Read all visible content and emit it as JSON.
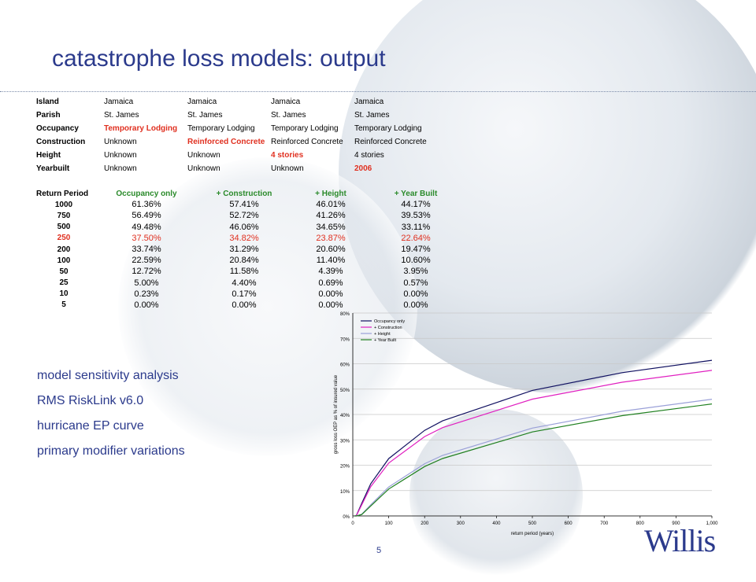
{
  "title": "catastrophe loss models: output",
  "attributes": [
    {
      "label": "Island",
      "values": [
        "Jamaica",
        "Jamaica",
        "Jamaica",
        "Jamaica"
      ],
      "highlight": -1
    },
    {
      "label": "Parish",
      "values": [
        "St. James",
        "St. James",
        "St. James",
        "St. James"
      ],
      "highlight": -1
    },
    {
      "label": "Occupancy",
      "values": [
        "Temporary Lodging",
        "Temporary Lodging",
        "Temporary Lodging",
        "Temporary Lodging"
      ],
      "highlight": 0
    },
    {
      "label": "Construction",
      "values": [
        "Unknown",
        "Reinforced Concrete",
        "Reinforced Concrete",
        "Reinforced Concrete"
      ],
      "highlight": 1
    },
    {
      "label": "Height",
      "values": [
        "Unknown",
        "Unknown",
        "4 stories",
        "4 stories"
      ],
      "highlight": 2
    },
    {
      "label": "Yearbuilt",
      "values": [
        "Unknown",
        "Unknown",
        "Unknown",
        "2006"
      ],
      "highlight": 3
    }
  ],
  "rp_table": {
    "headers": [
      "Return Period",
      "Occupancy only",
      "+ Construction",
      "+ Height",
      "+ Year Built"
    ],
    "rows": [
      {
        "rp": "1000",
        "vals": [
          "61.36%",
          "57.41%",
          "46.01%",
          "44.17%"
        ],
        "red": false
      },
      {
        "rp": "750",
        "vals": [
          "56.49%",
          "52.72%",
          "41.26%",
          "39.53%"
        ],
        "red": false
      },
      {
        "rp": "500",
        "vals": [
          "49.48%",
          "46.06%",
          "34.65%",
          "33.11%"
        ],
        "red": false
      },
      {
        "rp": "250",
        "vals": [
          "37.50%",
          "34.82%",
          "23.87%",
          "22.64%"
        ],
        "red": true
      },
      {
        "rp": "200",
        "vals": [
          "33.74%",
          "31.29%",
          "20.60%",
          "19.47%"
        ],
        "red": false
      },
      {
        "rp": "100",
        "vals": [
          "22.59%",
          "20.84%",
          "11.40%",
          "10.60%"
        ],
        "red": false
      },
      {
        "rp": "50",
        "vals": [
          "12.72%",
          "11.58%",
          "4.39%",
          "3.95%"
        ],
        "red": false
      },
      {
        "rp": "25",
        "vals": [
          "5.00%",
          "4.40%",
          "0.69%",
          "0.57%"
        ],
        "red": false
      },
      {
        "rp": "10",
        "vals": [
          "0.23%",
          "0.17%",
          "0.00%",
          "0.00%"
        ],
        "red": false
      },
      {
        "rp": "5",
        "vals": [
          "0.00%",
          "0.00%",
          "0.00%",
          "0.00%"
        ],
        "red": false
      }
    ]
  },
  "bullets": [
    "model sensitivity analysis",
    "RMS RiskLink v6.0",
    "hurricane EP curve",
    "primary modifier variations"
  ],
  "chart_data": {
    "type": "line",
    "xlabel": "return period (years)",
    "ylabel": "gross loss OEP as % of insured value",
    "xlim": [
      0,
      1000
    ],
    "ylim": [
      0,
      80
    ],
    "xticks": [
      "0",
      "100",
      "200",
      "300",
      "400",
      "500",
      "600",
      "700",
      "800",
      "900",
      "1,000"
    ],
    "yticks": [
      "0%",
      "10%",
      "20%",
      "30%",
      "40%",
      "50%",
      "60%",
      "70%",
      "80%"
    ],
    "legend_position": "top-left",
    "series": [
      {
        "name": "Occupancy only",
        "color": "#101060",
        "x": [
          5,
          10,
          25,
          50,
          100,
          200,
          250,
          500,
          750,
          1000
        ],
        "y": [
          0,
          0.23,
          5.0,
          12.72,
          22.59,
          33.74,
          37.5,
          49.48,
          56.49,
          61.36
        ]
      },
      {
        "name": "+ Construction",
        "color": "#e020c0",
        "x": [
          5,
          10,
          25,
          50,
          100,
          200,
          250,
          500,
          750,
          1000
        ],
        "y": [
          0,
          0.17,
          4.4,
          11.58,
          20.84,
          31.29,
          34.82,
          46.06,
          52.72,
          57.41
        ]
      },
      {
        "name": "+ Height",
        "color": "#9aa0d8",
        "x": [
          5,
          10,
          25,
          50,
          100,
          200,
          250,
          500,
          750,
          1000
        ],
        "y": [
          0,
          0,
          0.69,
          4.39,
          11.4,
          20.6,
          23.87,
          34.65,
          41.26,
          46.01
        ]
      },
      {
        "name": "+ Year Built",
        "color": "#208020",
        "x": [
          5,
          10,
          25,
          50,
          100,
          200,
          250,
          500,
          750,
          1000
        ],
        "y": [
          0,
          0,
          0.57,
          3.95,
          10.6,
          19.47,
          22.64,
          33.11,
          39.53,
          44.17
        ]
      }
    ]
  },
  "page_number": "5",
  "logo_text": "Willis",
  "colors": {
    "title": "#2b3a8c",
    "highlight": "#e03020",
    "header_green": "#2a8a2a"
  }
}
